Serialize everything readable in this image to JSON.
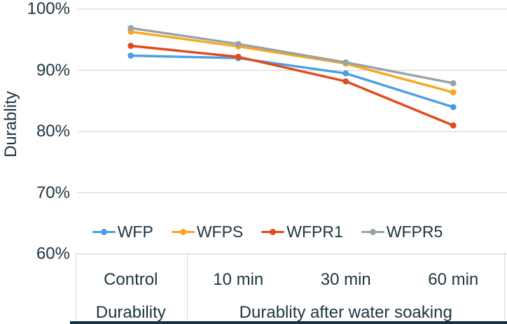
{
  "chart_data": {
    "type": "line",
    "title": "",
    "xlabel": "",
    "ylabel": "Durablity",
    "ylim": [
      60,
      100
    ],
    "y_tick_step": 10,
    "y_tick_labels": [
      "100%",
      "90%",
      "80%",
      "70%",
      "60%"
    ],
    "grid": "horizontal",
    "legend_position": "bottom-center-inside",
    "categories": [
      "Control",
      "10 min",
      "30 min",
      "60 min"
    ],
    "series": [
      {
        "name": "WFP",
        "color": "#4b9fe1",
        "values": [
          92.4,
          92.0,
          89.5,
          84.0
        ]
      },
      {
        "name": "WFPS",
        "color": "#f8a81e",
        "values": [
          96.3,
          93.9,
          91.1,
          86.4
        ]
      },
      {
        "name": "WFPR1",
        "color": "#e24a1b",
        "values": [
          94.0,
          92.2,
          88.2,
          81.0
        ]
      },
      {
        "name": "WFPR5",
        "color": "#98a2a9",
        "values": [
          96.9,
          94.3,
          91.3,
          87.9
        ]
      }
    ],
    "x_group_labels": [
      {
        "label": "Durability",
        "from": 0,
        "to": 0
      },
      {
        "label": "Durablity after water soaking",
        "from": 1,
        "to": 3
      }
    ]
  },
  "colors": {
    "grid": "#d9d9d9",
    "text": "#1d3440",
    "axis_bottom_border": "#15313e"
  }
}
